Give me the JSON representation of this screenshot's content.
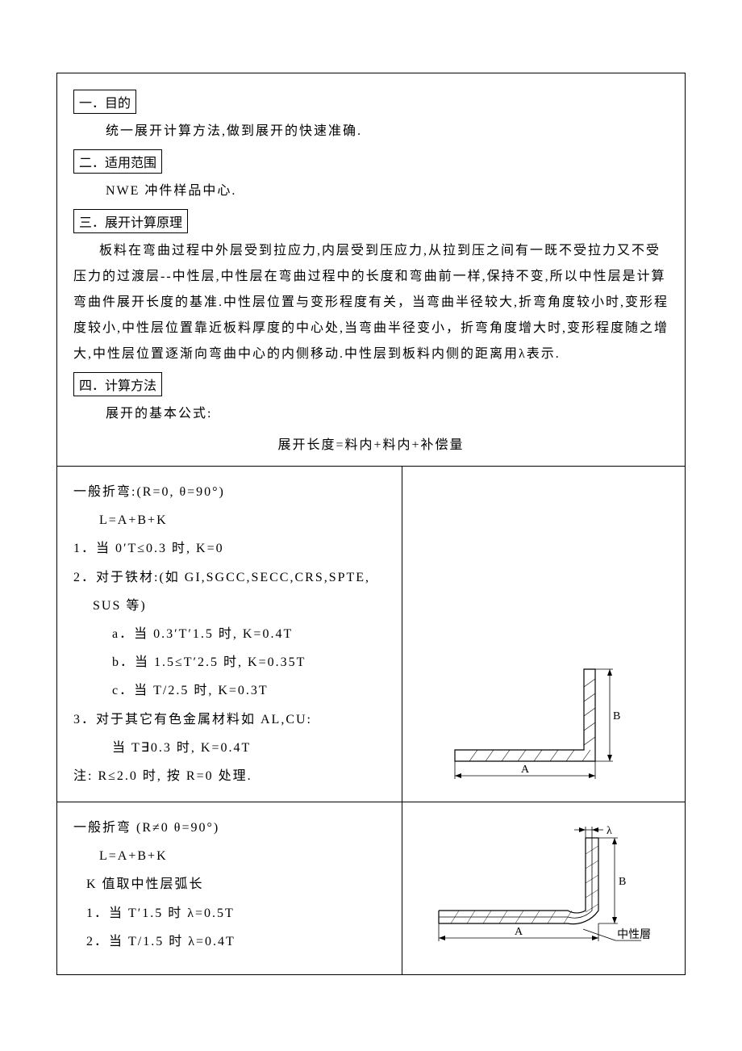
{
  "sections": {
    "s1": {
      "title": "一．目的",
      "body": "统一展开计算方法,做到展开的快速准确."
    },
    "s2": {
      "title": "二．适用范围",
      "body": "NWE 冲件样品中心."
    },
    "s3": {
      "title": "三．展开计算原理",
      "body": "板料在弯曲过程中外层受到拉应力,内层受到压应力,从拉到压之间有一既不受拉力又不受压力的过渡层--中性层,中性层在弯曲过程中的长度和弯曲前一样,保持不变,所以中性层是计算弯曲件展开长度的基准.中性层位置与变形程度有关，当弯曲半径较大,折弯角度较小时,变形程度较小,中性层位置靠近板料厚度的中心处,当弯曲半径变小，折弯角度增大时,变形程度随之增大,中性层位置逐渐向弯曲中心的内侧移动.中性层到板料内侧的距离用λ表示."
    },
    "s4": {
      "title": "四．计算方法",
      "line1": "展开的基本公式:",
      "formula": "展开长度=料内+料内+补偿量"
    }
  },
  "block1": {
    "heading": "一般折弯:(R=0,  θ=90°)",
    "formula": "L=A+B+K",
    "item1": "1．当 0′T≤0.3 时, K=0",
    "item2": "2．对于铁材:(如 GI,SGCC,SECC,CRS,SPTE,",
    "item2b": "SUS 等)",
    "sub_a": "a．当 0.3′T′1.5 时, K=0.4T",
    "sub_b": "b．当 1.5≤T′2.5 时, K=0.35T",
    "sub_c": "c．当  T/2.5 时, K=0.3T",
    "item3": "3．对于其它有色金属材料如 AL,CU:",
    "item3a": "当  T∃0.3 时,   K=0.4T",
    "note": "注: R≤2.0 时,  按 R=0 处理."
  },
  "block2": {
    "heading": "一般折弯  (R≠0      θ=90°)",
    "formula": "L=A+B+K",
    "kline": "K 值取中性层弧长",
    "item1": "1．当 T′1.5  时     λ=0.5T",
    "item2": "2．当 T/1.5 时     λ=0.4T"
  },
  "diagram": {
    "labelA": "A",
    "labelB": "B",
    "labelLambda": "λ",
    "labelNeutral": "中性層",
    "stroke": "#000000",
    "stroke_width": 1.2,
    "fontsize": 14
  }
}
